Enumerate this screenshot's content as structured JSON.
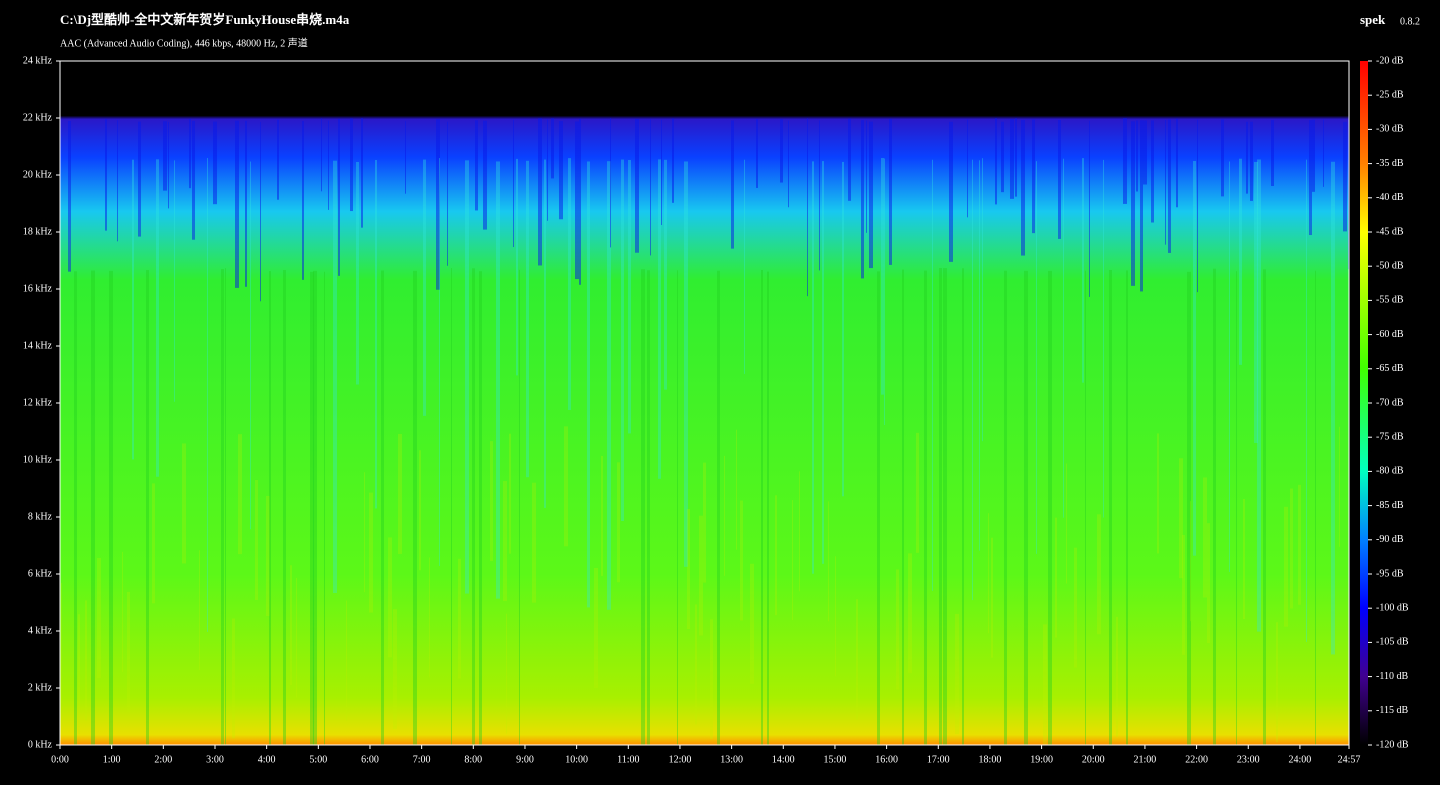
{
  "window": {
    "file": "C:\\Dj型酷帅-全中文新年贺岁FunkyHouse串烧.m4a",
    "info": "AAC (Advanced Audio Coding), 446 kbps, 48000 Hz, 2 声道",
    "app": "spek",
    "version": "0.8.2"
  },
  "axes": {
    "frequency": {
      "range": [
        0,
        24
      ],
      "ticks": [
        {
          "value": 0,
          "label": "0 kHz"
        },
        {
          "value": 2,
          "label": "2 kHz"
        },
        {
          "value": 4,
          "label": "4 kHz"
        },
        {
          "value": 6,
          "label": "6 kHz"
        },
        {
          "value": 8,
          "label": "8 kHz"
        },
        {
          "value": 10,
          "label": "10 kHz"
        },
        {
          "value": 12,
          "label": "12 kHz"
        },
        {
          "value": 14,
          "label": "14 kHz"
        },
        {
          "value": 16,
          "label": "16 kHz"
        },
        {
          "value": 18,
          "label": "18 kHz"
        },
        {
          "value": 20,
          "label": "20 kHz"
        },
        {
          "value": 22,
          "label": "22 kHz"
        },
        {
          "value": 24,
          "label": "24 kHz"
        }
      ]
    },
    "time": {
      "range": [
        0,
        1497
      ],
      "ticks": [
        {
          "value": 0,
          "label": "0:00"
        },
        {
          "value": 60,
          "label": "1:00"
        },
        {
          "value": 120,
          "label": "2:00"
        },
        {
          "value": 180,
          "label": "3:00"
        },
        {
          "value": 240,
          "label": "4:00"
        },
        {
          "value": 300,
          "label": "5:00"
        },
        {
          "value": 360,
          "label": "6:00"
        },
        {
          "value": 420,
          "label": "7:00"
        },
        {
          "value": 480,
          "label": "8:00"
        },
        {
          "value": 540,
          "label": "9:00"
        },
        {
          "value": 600,
          "label": "10:00"
        },
        {
          "value": 660,
          "label": "11:00"
        },
        {
          "value": 720,
          "label": "12:00"
        },
        {
          "value": 780,
          "label": "13:00"
        },
        {
          "value": 840,
          "label": "14:00"
        },
        {
          "value": 900,
          "label": "15:00"
        },
        {
          "value": 960,
          "label": "16:00"
        },
        {
          "value": 1020,
          "label": "17:00"
        },
        {
          "value": 1080,
          "label": "18:00"
        },
        {
          "value": 1140,
          "label": "19:00"
        },
        {
          "value": 1200,
          "label": "20:00"
        },
        {
          "value": 1260,
          "label": "21:00"
        },
        {
          "value": 1320,
          "label": "22:00"
        },
        {
          "value": 1380,
          "label": "23:00"
        },
        {
          "value": 1440,
          "label": "24:00"
        },
        {
          "value": 1497,
          "label": "24:57"
        }
      ]
    },
    "level": {
      "range": [
        -120,
        -20
      ],
      "ticks": [
        {
          "value": -20,
          "label": "-20 dB"
        },
        {
          "value": -25,
          "label": "-25 dB"
        },
        {
          "value": -30,
          "label": "-30 dB"
        },
        {
          "value": -35,
          "label": "-35 dB"
        },
        {
          "value": -40,
          "label": "-40 dB"
        },
        {
          "value": -45,
          "label": "-45 dB"
        },
        {
          "value": -50,
          "label": "-50 dB"
        },
        {
          "value": -55,
          "label": "-55 dB"
        },
        {
          "value": -60,
          "label": "-60 dB"
        },
        {
          "value": -65,
          "label": "-65 dB"
        },
        {
          "value": -70,
          "label": "-70 dB"
        },
        {
          "value": -75,
          "label": "-75 dB"
        },
        {
          "value": -80,
          "label": "-80 dB"
        },
        {
          "value": -85,
          "label": "-85 dB"
        },
        {
          "value": -90,
          "label": "-90 dB"
        },
        {
          "value": -95,
          "label": "-95 dB"
        },
        {
          "value": -100,
          "label": "-100 dB"
        },
        {
          "value": -105,
          "label": "-105 dB"
        },
        {
          "value": -110,
          "label": "-110 dB"
        },
        {
          "value": -115,
          "label": "-115 dB"
        },
        {
          "value": -120,
          "label": "-120 dB"
        }
      ]
    }
  }
}
